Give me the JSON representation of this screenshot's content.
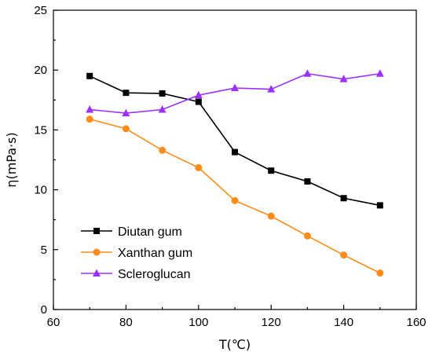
{
  "chart_data": {
    "type": "line",
    "xlabel": "T(℃)",
    "ylabel": "η(mPa·s)",
    "xlim": [
      60,
      160
    ],
    "ylim": [
      0,
      25
    ],
    "xticks": [
      60,
      80,
      100,
      120,
      140,
      160
    ],
    "yticks": [
      0,
      5,
      10,
      15,
      20,
      25
    ],
    "xtick_labels": [
      "60",
      "80",
      "100",
      "120",
      "140",
      "160"
    ],
    "ytick_labels": [
      "0",
      "5",
      "10",
      "15",
      "20",
      "25"
    ],
    "x": [
      70,
      80,
      90,
      100,
      110,
      120,
      130,
      140,
      150
    ],
    "grid": false,
    "legend_position": "bottom-left",
    "series": [
      {
        "name": "Diutan gum",
        "values": [
          19.5,
          18.1,
          18.05,
          17.35,
          13.15,
          11.6,
          10.7,
          9.3,
          8.7
        ],
        "color": "#000000",
        "marker": "square"
      },
      {
        "name": "Xanthan gum",
        "values": [
          15.9,
          15.1,
          13.3,
          11.85,
          9.1,
          7.8,
          6.15,
          4.55,
          3.05
        ],
        "color": "#ff8c1a",
        "marker": "circle"
      },
      {
        "name": "Scleroglucan",
        "values": [
          16.7,
          16.4,
          16.7,
          17.9,
          18.5,
          18.4,
          19.7,
          19.25,
          19.7
        ],
        "color": "#9b30ff",
        "marker": "triangle"
      }
    ]
  }
}
